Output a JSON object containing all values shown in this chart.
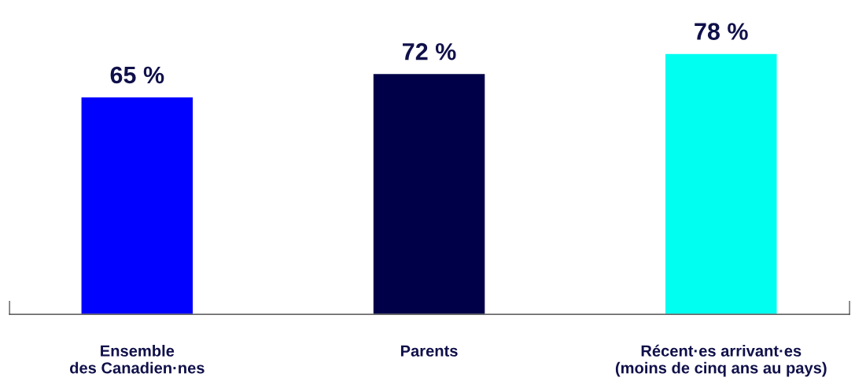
{
  "chart_data": {
    "type": "bar",
    "categories": [
      "Ensemble\ndes Canadien·nes",
      "Parents",
      "Récent·es arrivant·es\n(moins de cinq ans au pays)"
    ],
    "values": [
      65,
      72,
      78
    ],
    "colors": [
      "#0000ff",
      "#000048",
      "#00fff0"
    ],
    "value_labels": [
      "65 %",
      "72 %",
      "78 %"
    ],
    "grid": false,
    "legend": false
  }
}
